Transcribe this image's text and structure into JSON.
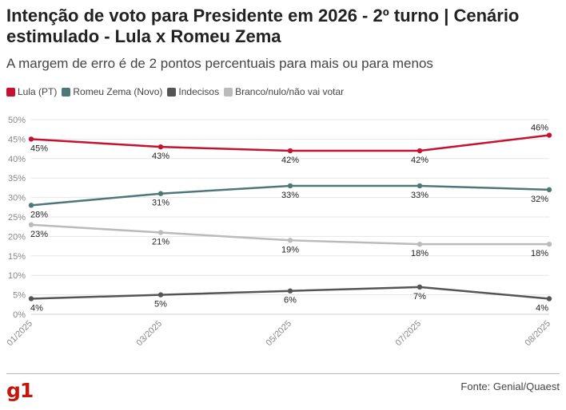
{
  "header": {
    "title": "Intenção de voto para Presidente em 2026 - 2º turno | Cenário estimulado - Lula x Romeu Zema",
    "subtitle": "A margem de erro é de 2 pontos percentuais para mais ou para menos"
  },
  "footer": {
    "logo": "g1",
    "source": "Fonte: Genial/Quaest"
  },
  "chart_data": {
    "type": "line",
    "categories": [
      "01/2025",
      "03/2025",
      "05/2025",
      "07/2025",
      "08/2025"
    ],
    "ylim": [
      0,
      50
    ],
    "yticks": [
      "0%",
      "5%",
      "10%",
      "15%",
      "20%",
      "25%",
      "30%",
      "35%",
      "40%",
      "45%",
      "50%"
    ],
    "grid": true,
    "legend_position": "top-left",
    "value_suffix": "%",
    "series": [
      {
        "name": "Lula (PT)",
        "color": "#c4122f",
        "values": [
          45,
          43,
          42,
          42,
          46
        ],
        "labels_above": [
          false,
          false,
          false,
          false,
          true
        ]
      },
      {
        "name": "Romeu Zema (Novo)",
        "color": "#4d7877",
        "values": [
          28,
          31,
          33,
          33,
          32
        ],
        "labels_above": [
          false,
          false,
          false,
          false,
          false
        ]
      },
      {
        "name": "Indecisos",
        "color": "#555555",
        "values": [
          4,
          5,
          6,
          7,
          4
        ],
        "labels_above": [
          false,
          false,
          false,
          false,
          false
        ]
      },
      {
        "name": "Branco/nulo/não vai votar",
        "color": "#bbbbbb",
        "values": [
          23,
          21,
          19,
          18,
          18
        ],
        "labels_above": [
          false,
          false,
          false,
          false,
          false
        ]
      }
    ]
  }
}
